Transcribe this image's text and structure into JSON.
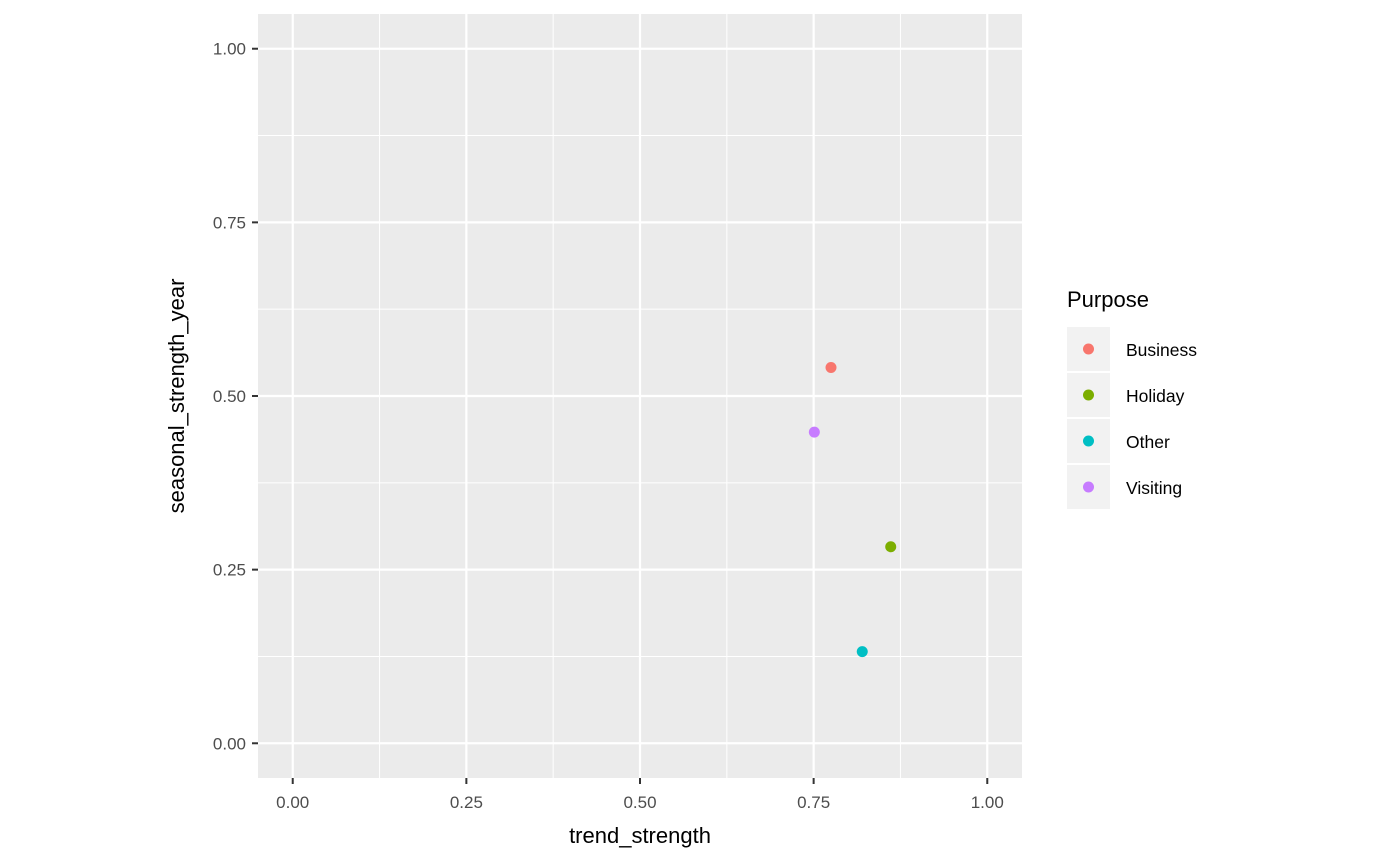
{
  "chart_data": {
    "type": "scatter",
    "xlabel": "trend_strength",
    "ylabel": "seasonal_strength_year",
    "xlim": [
      -0.05,
      1.05
    ],
    "ylim": [
      -0.05,
      1.05
    ],
    "x_ticks": [
      0,
      0.25,
      0.5,
      0.75,
      1
    ],
    "y_ticks": [
      0,
      0.25,
      0.5,
      0.75,
      1
    ],
    "x_tick_labels": [
      "0.00",
      "0.25",
      "0.50",
      "0.75",
      "1.00"
    ],
    "y_tick_labels": [
      "0.00",
      "0.25",
      "0.50",
      "0.75",
      "1.00"
    ],
    "grid": true,
    "legend": {
      "title": "Purpose",
      "position": "right"
    },
    "series": [
      {
        "name": "Business",
        "color": "#F8766D",
        "x": [
          0.775
        ],
        "y": [
          0.541
        ]
      },
      {
        "name": "Holiday",
        "color": "#7CAE00",
        "x": [
          0.861
        ],
        "y": [
          0.283
        ]
      },
      {
        "name": "Other",
        "color": "#00BFC4",
        "x": [
          0.82
        ],
        "y": [
          0.132
        ]
      },
      {
        "name": "Visiting",
        "color": "#C77CFF",
        "x": [
          0.751
        ],
        "y": [
          0.448
        ]
      }
    ]
  }
}
